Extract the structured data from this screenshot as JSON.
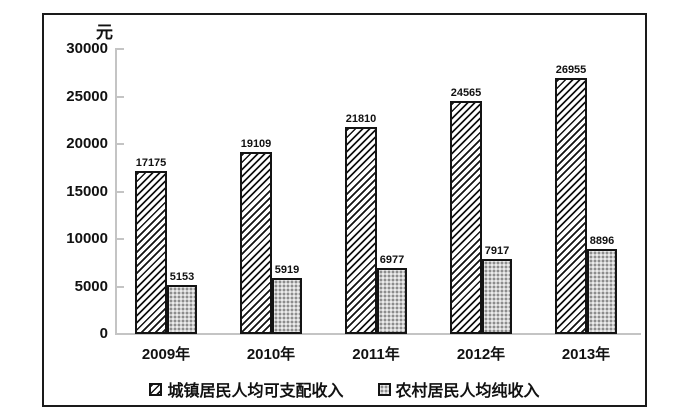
{
  "chart_data": {
    "type": "bar",
    "title": "",
    "ylabel": "元",
    "xlabel": "",
    "categories": [
      "2009年",
      "2010年",
      "2011年",
      "2012年",
      "2013年"
    ],
    "series": [
      {
        "name": "城镇居民人均可支配收入",
        "values": [
          17175,
          19109,
          21810,
          24565,
          26955
        ],
        "pattern": "diagonal-hatch",
        "fill_color": "#ffffff",
        "hatch_color": "#141414"
      },
      {
        "name": "农村居民人均纯收入",
        "values": [
          5153,
          5919,
          6977,
          7917,
          8896
        ],
        "pattern": "dot-grid",
        "fill_color": "#cbcbcb",
        "hatch_color": "#7d7d7d"
      }
    ],
    "ylim": [
      0,
      30000
    ],
    "yticks": [
      0,
      5000,
      10000,
      15000,
      20000,
      25000,
      30000
    ],
    "bar_value_labels": true,
    "grid": false,
    "legend_position": "bottom",
    "axis_color": "#c4c4c4",
    "border_color": "#1a1a1a",
    "text_color": "#111111"
  }
}
